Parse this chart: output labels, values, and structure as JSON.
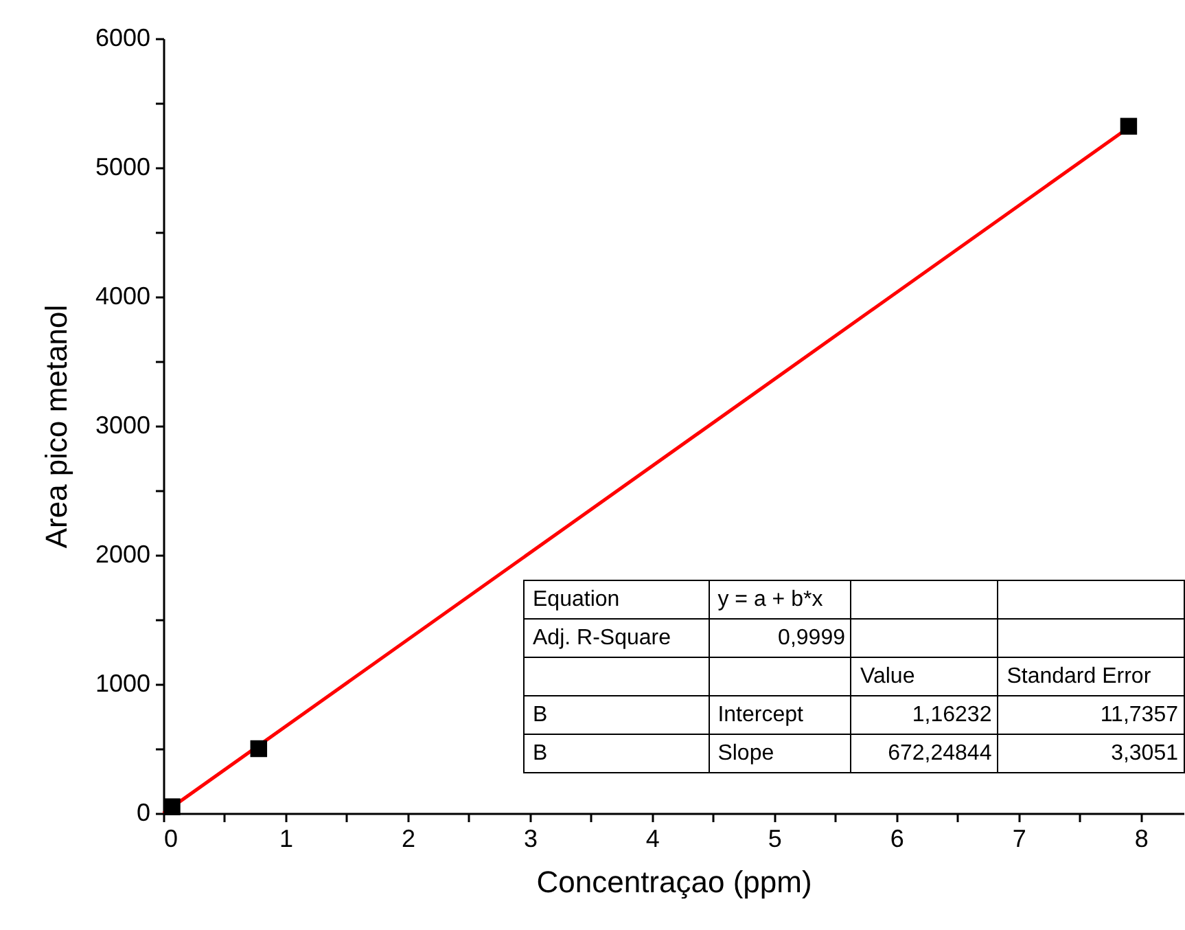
{
  "chart_data": {
    "type": "scatter",
    "xlabel": "Concentraçao (ppm)",
    "ylabel": "Area pico metanol",
    "xlim": [
      0,
      8.35
    ],
    "ylim": [
      0,
      6000
    ],
    "xticks": [
      0,
      {
        "value": 0.5,
        "label": null
      },
      1,
      {
        "value": 1.5,
        "label": null
      },
      2,
      {
        "value": 2.5,
        "label": null
      },
      3,
      {
        "value": 3.5,
        "label": null
      },
      4,
      {
        "value": 4.5,
        "label": null
      },
      5,
      {
        "value": 5.5,
        "label": null
      },
      6,
      {
        "value": 6.5,
        "label": null
      },
      7,
      {
        "value": 7.5,
        "label": null
      },
      8
    ],
    "yticks": [
      0,
      {
        "value": 500,
        "label": null
      },
      1000,
      {
        "value": 1500,
        "label": null
      },
      2000,
      {
        "value": 2500,
        "label": null
      },
      3000,
      {
        "value": 3500,
        "label": null
      },
      4000,
      {
        "value": 4500,
        "label": null
      },
      5000,
      {
        "value": 5500,
        "label": null
      },
      6000
    ],
    "grid": false,
    "series": [
      {
        "type": "scatter",
        "color": "#000000",
        "marker": "square",
        "x": [
          0.07,
          0.78,
          7.9
        ],
        "values": [
          50,
          500,
          5320
        ]
      },
      {
        "type": "line",
        "color": "#ff0000",
        "marker": "none",
        "line_style": "solid",
        "x": [
          0,
          7.9
        ],
        "values": [
          0,
          5310
        ]
      }
    ],
    "annotations": [
      "Equation",
      "y = a + b*x",
      "Adj. R-Square",
      "0,9999",
      "Value",
      "Standard Error",
      "B",
      "Intercept",
      "1,16232",
      "11,7357",
      "B",
      "Slope",
      "672,24844",
      "3,3051"
    ]
  }
}
